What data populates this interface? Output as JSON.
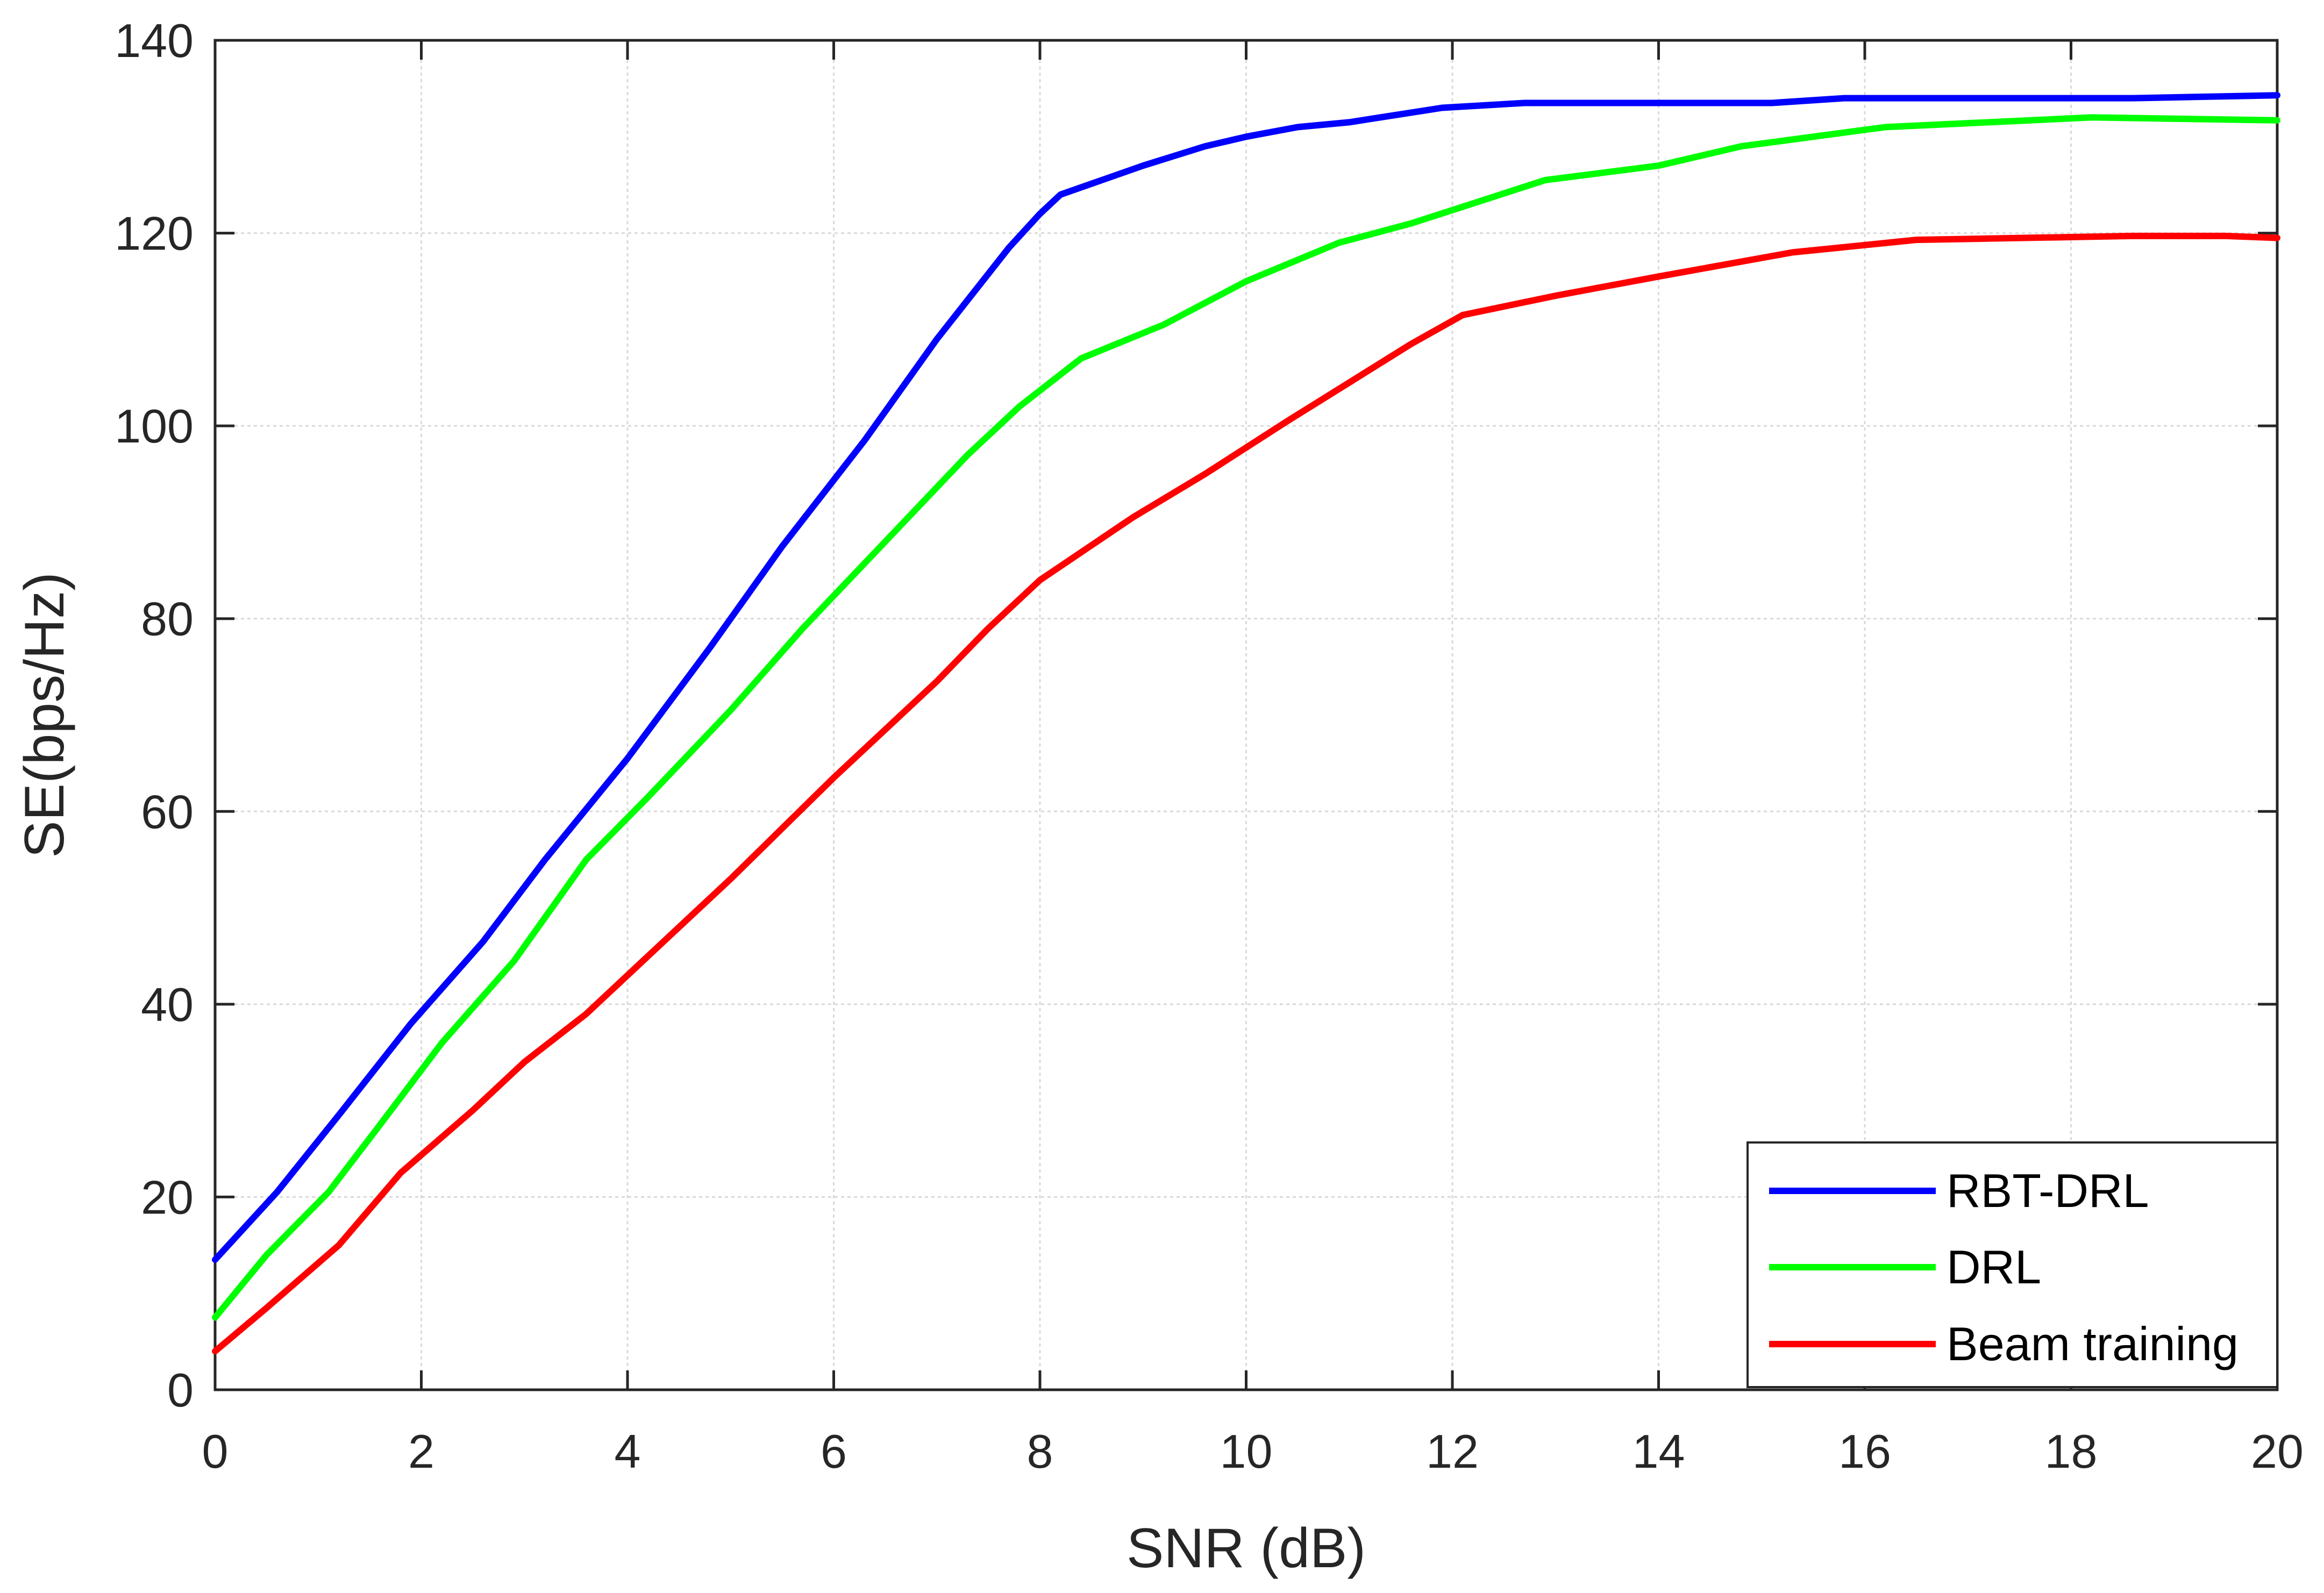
{
  "chart_data": {
    "type": "line",
    "title": "",
    "xlabel": "SNR (dB)",
    "ylabel": "SE(bps/Hz)",
    "xlim": [
      0,
      20
    ],
    "ylim": [
      0,
      140
    ],
    "xticks": [
      0,
      2,
      4,
      6,
      8,
      10,
      12,
      14,
      16,
      18,
      20
    ],
    "yticks": [
      0,
      20,
      40,
      60,
      80,
      100,
      120,
      140
    ],
    "xtick_labels": [
      "0",
      "2",
      "4",
      "6",
      "8",
      "10",
      "12",
      "14",
      "16",
      "18",
      "20"
    ],
    "ytick_labels": [
      "0",
      "20",
      "40",
      "60",
      "80",
      "100",
      "120",
      "140"
    ],
    "grid": true,
    "legend_position": "bottom-right",
    "series": [
      {
        "name": "RBT-DRL",
        "color": "#0000ff",
        "x": [
          0,
          0.6,
          1.2,
          1.9,
          2.6,
          3.2,
          4.0,
          4.8,
          5.5,
          6.3,
          7.0,
          7.7,
          8.0,
          8.2,
          8.6,
          9.0,
          9.6,
          10.0,
          10.5,
          11.0,
          11.9,
          12.7,
          13.5,
          15.1,
          15.8,
          16.5,
          18.6,
          20.0
        ],
        "values": [
          13.5,
          20.5,
          28.5,
          38.0,
          46.5,
          55.0,
          65.5,
          77.0,
          87.5,
          98.5,
          109.0,
          118.5,
          122.0,
          124.0,
          125.5,
          127.0,
          129.0,
          130.0,
          131.0,
          131.5,
          133.0,
          133.5,
          133.5,
          133.5,
          134.0,
          134.0,
          134.0,
          134.3
        ]
      },
      {
        "name": "DRL",
        "color": "#00ff00",
        "x": [
          0,
          0.5,
          1.1,
          1.6,
          2.2,
          2.9,
          3.6,
          4.2,
          5.0,
          5.7,
          6.5,
          7.3,
          7.8,
          8.4,
          9.2,
          10.0,
          10.9,
          11.6,
          12.9,
          14.0,
          14.8,
          16.2,
          18.2,
          20.0
        ],
        "values": [
          7.5,
          14.0,
          20.5,
          27.5,
          36.0,
          44.5,
          55.0,
          61.5,
          70.5,
          79.0,
          88.0,
          97.0,
          102.0,
          107.0,
          110.5,
          115.0,
          119.0,
          121.0,
          125.5,
          127.0,
          129.0,
          131.0,
          132.0,
          131.7
        ]
      },
      {
        "name": "Beam training",
        "color": "#ff0000",
        "x": [
          0,
          0.5,
          1.2,
          1.8,
          2.5,
          3.0,
          3.6,
          4.2,
          5.0,
          6.0,
          7.0,
          7.5,
          8.0,
          8.9,
          9.6,
          10.4,
          11.0,
          11.6,
          12.1,
          13.0,
          14.0,
          15.3,
          16.5,
          18.6,
          19.5,
          20.0
        ],
        "values": [
          4.0,
          8.5,
          15.0,
          22.5,
          29.0,
          34.0,
          39.0,
          45.0,
          53.0,
          63.5,
          73.5,
          79.0,
          84.0,
          90.5,
          95.0,
          100.5,
          104.5,
          108.5,
          111.5,
          113.5,
          115.5,
          118.0,
          119.3,
          119.7,
          119.7,
          119.5
        ]
      }
    ]
  }
}
